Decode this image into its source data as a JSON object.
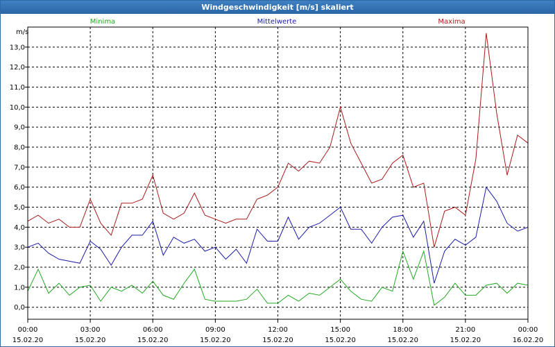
{
  "window": {
    "title": "Windgeschwindigkeit [m/s] skaliert"
  },
  "chart_data": {
    "type": "line",
    "title": "Windgeschwindigkeit [m/s] skaliert",
    "ylabel": "m/s",
    "ylim": [
      -0.6,
      14.0
    ],
    "xlim": [
      0,
      24
    ],
    "y_ticks": [
      "0,0",
      "1,0",
      "2,0",
      "3,0",
      "4,0",
      "5,0",
      "6,0",
      "7,0",
      "8,0",
      "9,0",
      "10,0",
      "11,0",
      "12,0",
      "13,0"
    ],
    "x_ticks": [
      {
        "time": "00:00",
        "date": "15.02.20"
      },
      {
        "time": "03:00",
        "date": "15.02.20"
      },
      {
        "time": "06:00",
        "date": "15.02.20"
      },
      {
        "time": "09:00",
        "date": "15.02.20"
      },
      {
        "time": "12:00",
        "date": "15.02.20"
      },
      {
        "time": "15:00",
        "date": "15.02.20"
      },
      {
        "time": "18:00",
        "date": "15.02.20"
      },
      {
        "time": "21:00",
        "date": "15.02.20"
      },
      {
        "time": "00:00",
        "date": "16.02.20"
      }
    ],
    "grid": true,
    "legend_position": "top",
    "colors": {
      "Minima": "#22aa22",
      "Mittelwerte": "#1a1aaa",
      "Maxima": "#aa1a1a"
    },
    "hours": [
      0,
      0.5,
      1,
      1.5,
      2,
      2.5,
      3,
      3.5,
      4,
      4.5,
      5,
      5.5,
      6,
      6.5,
      7,
      7.5,
      8,
      8.5,
      9,
      9.5,
      10,
      10.5,
      11,
      11.5,
      12,
      12.5,
      13,
      13.5,
      14,
      14.5,
      15,
      15.5,
      16,
      16.5,
      17,
      17.5,
      18,
      18.5,
      19,
      19.5,
      20,
      20.5,
      21,
      21.5,
      22,
      22.5,
      23,
      23.5,
      24
    ],
    "series": [
      {
        "name": "Minima",
        "values": [
          0.8,
          1.9,
          0.7,
          1.2,
          0.6,
          1.0,
          1.1,
          0.3,
          1.0,
          0.8,
          1.1,
          0.7,
          1.3,
          0.6,
          0.4,
          1.2,
          1.9,
          0.4,
          0.3,
          0.3,
          0.3,
          0.4,
          0.9,
          0.2,
          0.2,
          0.6,
          0.3,
          0.7,
          0.6,
          1.0,
          1.4,
          0.8,
          0.4,
          0.3,
          1.0,
          0.8,
          2.8,
          1.4,
          2.8,
          0.1,
          0.5,
          1.2,
          0.6,
          0.6,
          1.1,
          1.2,
          0.7,
          1.2,
          1.1
        ]
      },
      {
        "name": "Mittelwerte",
        "values": [
          3.0,
          3.2,
          2.7,
          2.4,
          2.3,
          2.2,
          3.3,
          2.9,
          2.1,
          3.0,
          3.6,
          3.6,
          4.3,
          2.6,
          3.5,
          3.2,
          3.4,
          2.8,
          3.0,
          2.4,
          2.9,
          2.2,
          3.9,
          3.3,
          3.3,
          4.5,
          3.4,
          4.0,
          4.2,
          4.6,
          5.0,
          3.9,
          3.9,
          3.2,
          4.0,
          4.5,
          4.6,
          3.5,
          4.3,
          1.2,
          2.8,
          3.4,
          3.1,
          3.5,
          6.0,
          5.3,
          4.2,
          3.8,
          4.0
        ]
      },
      {
        "name": "Maxima",
        "values": [
          4.3,
          4.6,
          4.2,
          4.4,
          4.0,
          4.0,
          5.4,
          4.2,
          3.6,
          5.2,
          5.2,
          5.4,
          6.6,
          4.7,
          4.4,
          4.7,
          5.7,
          4.6,
          4.4,
          4.2,
          4.4,
          4.4,
          5.4,
          5.6,
          6.0,
          7.2,
          6.8,
          7.3,
          7.2,
          8.0,
          10.0,
          8.2,
          7.2,
          6.2,
          6.4,
          7.2,
          7.6,
          6.0,
          6.2,
          3.0,
          4.8,
          5.0,
          4.6,
          7.4,
          13.7,
          9.7,
          6.6,
          8.6,
          8.2
        ]
      }
    ]
  }
}
